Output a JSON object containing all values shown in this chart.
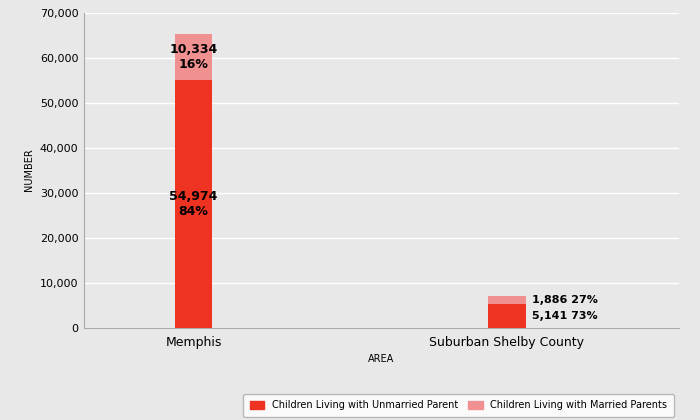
{
  "categories": [
    "Memphis",
    "Suburban Shelby County"
  ],
  "unmarried_values": [
    54974,
    5141
  ],
  "married_values": [
    10334,
    1886
  ],
  "unmarried_pcts": [
    "84%",
    "73%"
  ],
  "married_pcts": [
    "16%",
    "27%"
  ],
  "unmarried_color": "#ee3322",
  "married_color": "#f09090",
  "bar_width": 0.12,
  "ylim": [
    0,
    70000
  ],
  "yticks": [
    0,
    10000,
    20000,
    30000,
    40000,
    50000,
    60000,
    70000
  ],
  "ylabel": "NUMBER",
  "xlabel": "AREA",
  "legend_labels": [
    "Children Living with Unmarried Parent",
    "Children Living with Married Parents"
  ],
  "background_color": "#e8e8e8",
  "plot_bg_color": "#e8e8e8",
  "grid_color": "#ffffff"
}
